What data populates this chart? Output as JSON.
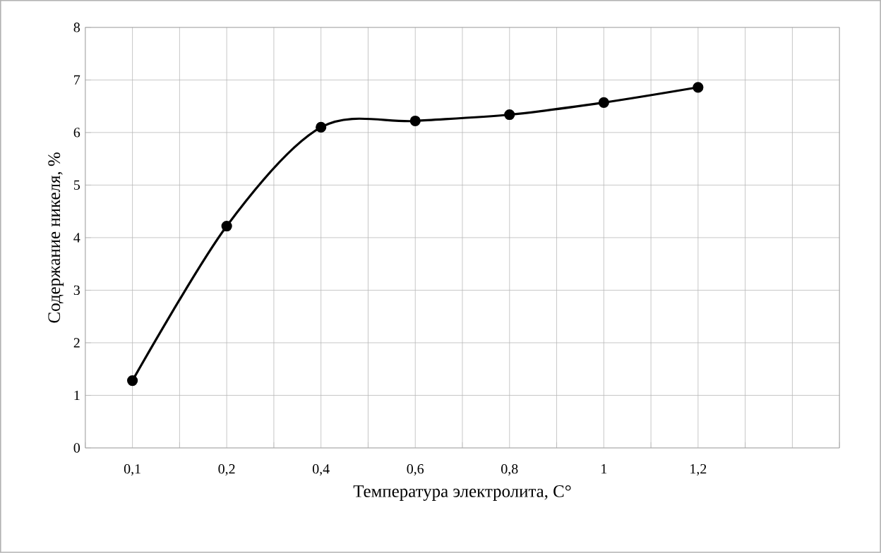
{
  "chart_data": {
    "type": "line",
    "xlabel": "Температура электролита, C°",
    "ylabel": "Содержание никеля, %",
    "categories": [
      "0,1",
      "0,2",
      "0,4",
      "0,6",
      "0,8",
      "1",
      "1,2",
      null
    ],
    "values": [
      1.28,
      4.22,
      6.1,
      6.22,
      6.34,
      6.57,
      6.86,
      null
    ],
    "color": "#000000",
    "marker": "circle",
    "line_style": "solid",
    "grid": true,
    "ylim": [
      0,
      8
    ],
    "yticks": [
      0,
      1,
      2,
      3,
      4,
      5,
      6,
      7,
      8
    ]
  }
}
